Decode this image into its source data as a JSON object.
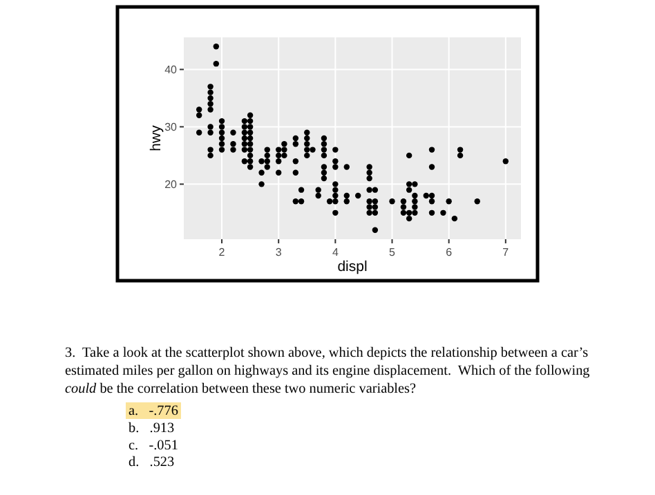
{
  "chart_data": {
    "type": "scatter",
    "xlabel": "displ",
    "ylabel": "hwy",
    "x": [
      1.6,
      1.6,
      1.6,
      1.8,
      1.8,
      1.8,
      1.8,
      1.8,
      1.8,
      1.8,
      1.8,
      1.8,
      1.9,
      1.9,
      2.0,
      2.0,
      2.0,
      2.0,
      2.0,
      2.0,
      2.2,
      2.2,
      2.2,
      2.4,
      2.4,
      2.4,
      2.4,
      2.4,
      2.4,
      2.4,
      2.5,
      2.5,
      2.5,
      2.5,
      2.5,
      2.5,
      2.5,
      2.5,
      2.5,
      2.5,
      2.7,
      2.7,
      2.7,
      2.8,
      2.8,
      2.8,
      2.8,
      3.0,
      3.0,
      3.0,
      3.0,
      3.1,
      3.1,
      3.1,
      3.3,
      3.3,
      3.3,
      3.3,
      3.3,
      3.4,
      3.4,
      3.5,
      3.5,
      3.5,
      3.5,
      3.5,
      3.6,
      3.7,
      3.7,
      3.8,
      3.8,
      3.8,
      3.8,
      3.8,
      3.8,
      3.8,
      3.9,
      4.0,
      4.0,
      4.0,
      4.0,
      4.0,
      4.0,
      4.0,
      4.0,
      4.2,
      4.2,
      4.2,
      4.4,
      4.6,
      4.6,
      4.6,
      4.6,
      4.6,
      4.6,
      4.6,
      4.7,
      4.7,
      4.7,
      4.7,
      4.7,
      5.0,
      5.2,
      5.2,
      5.2,
      5.3,
      5.3,
      5.3,
      5.3,
      5.3,
      5.4,
      5.4,
      5.4,
      5.4,
      5.4,
      5.6,
      5.7,
      5.7,
      5.7,
      5.7,
      5.7,
      5.9,
      6.0,
      6.1,
      6.2,
      6.2,
      6.5,
      7.0
    ],
    "values": [
      33,
      32,
      29,
      37,
      36,
      35,
      34,
      33,
      30,
      29,
      26,
      25,
      44,
      41,
      31,
      30,
      29,
      28,
      27,
      26,
      29,
      27,
      26,
      31,
      30,
      29,
      28,
      27,
      26,
      24,
      32,
      31,
      30,
      29,
      28,
      27,
      26,
      25,
      24,
      23,
      24,
      22,
      20,
      26,
      25,
      24,
      23,
      26,
      25,
      24,
      22,
      27,
      26,
      25,
      28,
      27,
      24,
      22,
      17,
      19,
      17,
      29,
      28,
      27,
      26,
      25,
      26,
      19,
      18,
      28,
      27,
      26,
      25,
      23,
      22,
      21,
      17,
      26,
      24,
      23,
      20,
      19,
      18,
      17,
      15,
      23,
      18,
      17,
      18,
      23,
      22,
      21,
      19,
      17,
      16,
      15,
      19,
      17,
      16,
      15,
      12,
      17,
      17,
      16,
      15,
      25,
      20,
      19,
      15,
      14,
      20,
      18,
      17,
      16,
      15,
      18,
      26,
      23,
      18,
      17,
      15,
      15,
      17,
      14,
      26,
      25,
      17,
      24
    ],
    "color": "#000000",
    "marker": "circle",
    "xlim": [
      1.33,
      7.27
    ],
    "xticks": [
      2,
      3,
      4,
      5,
      6,
      7
    ],
    "ylim": [
      10.4,
      45.6
    ],
    "yticks": [
      20,
      30,
      40
    ],
    "grid": true,
    "annotations": [
      "3.  Take a look at the scatterplot shown above, which depicts the relationship between a car’s",
      "estimated miles per gallon on highways and its engine displacement.  Which of the following",
      "could be the correlation between these two numeric variables?",
      "a.   -.776",
      "b.   .913",
      "c.   -.051",
      "d.   .523"
    ]
  }
}
